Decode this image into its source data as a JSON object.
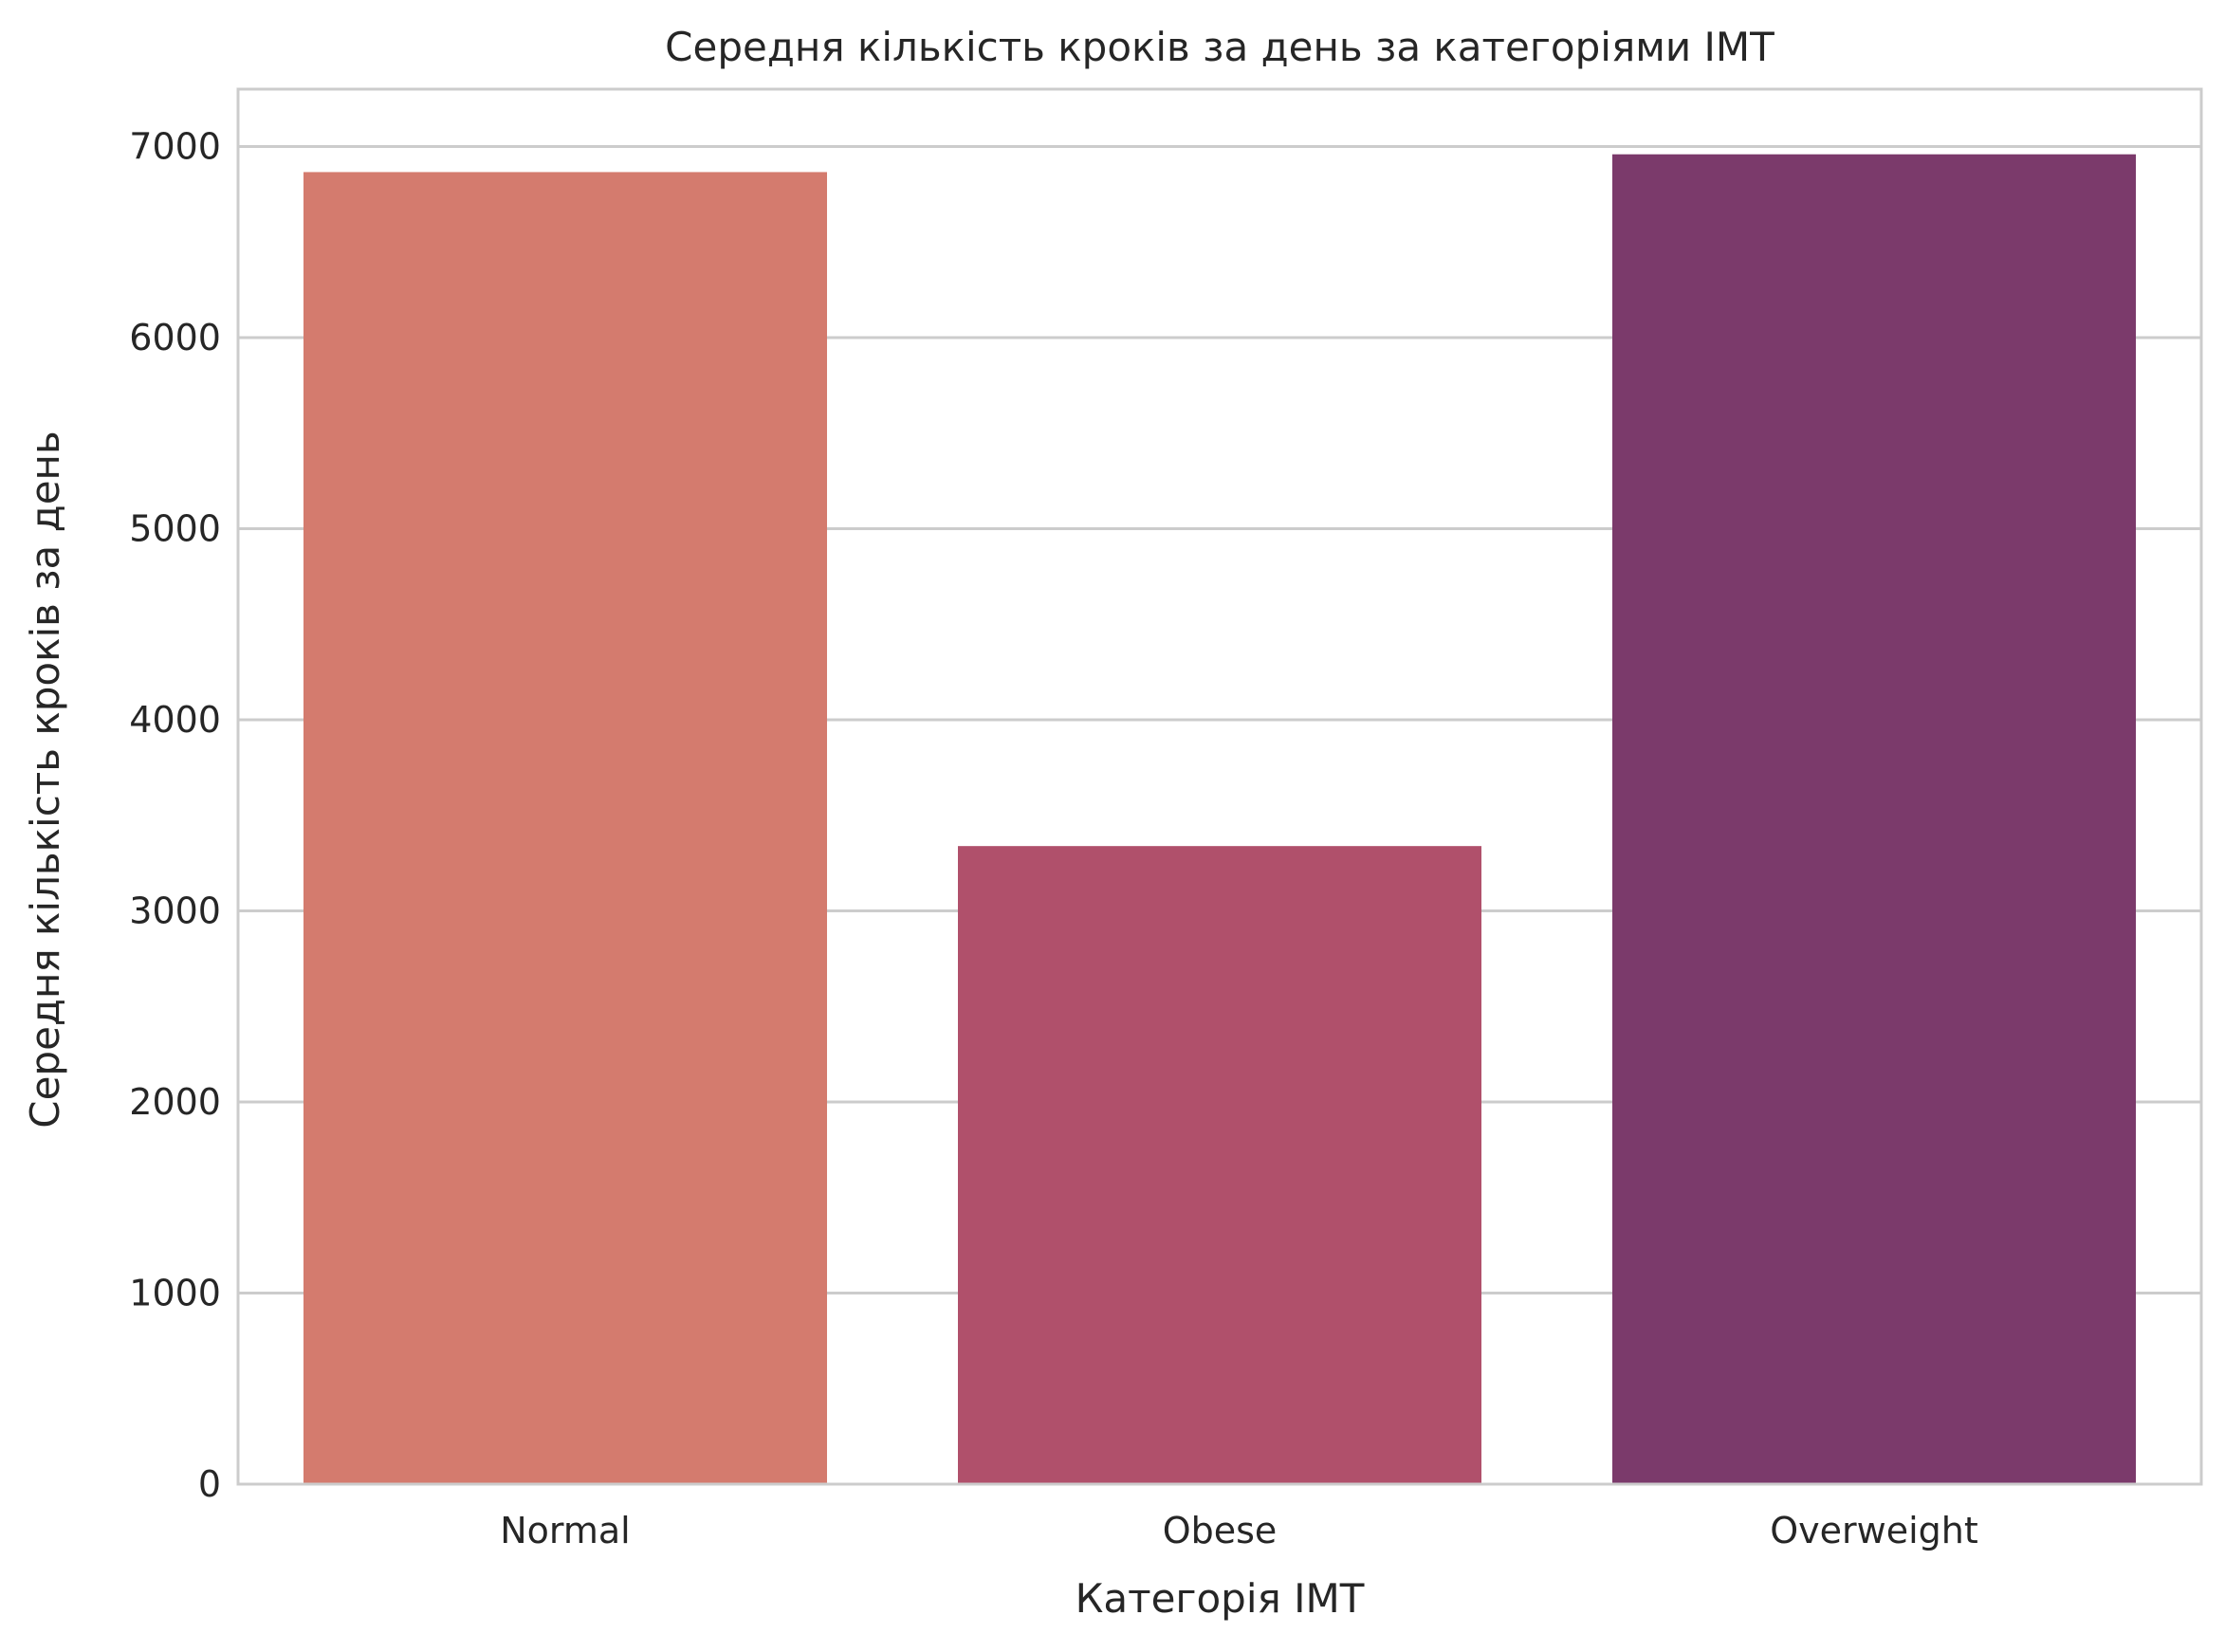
{
  "chart_data": {
    "type": "bar",
    "title": "Середня кількість кроків за день за категоріями IMT",
    "xlabel": "Категорія IMT",
    "ylabel": "Середня кількість кроків за день",
    "categories": [
      "Normal",
      "Obese",
      "Overweight"
    ],
    "values": [
      6866,
      3339,
      6959
    ],
    "colors": [
      "#d47b6e",
      "#b0506b",
      "#7b3a6b"
    ],
    "ylim": [
      0,
      7300
    ],
    "yticks": [
      0,
      1000,
      2000,
      3000,
      4000,
      5000,
      6000,
      7000
    ],
    "grid": true,
    "legend": "none"
  }
}
